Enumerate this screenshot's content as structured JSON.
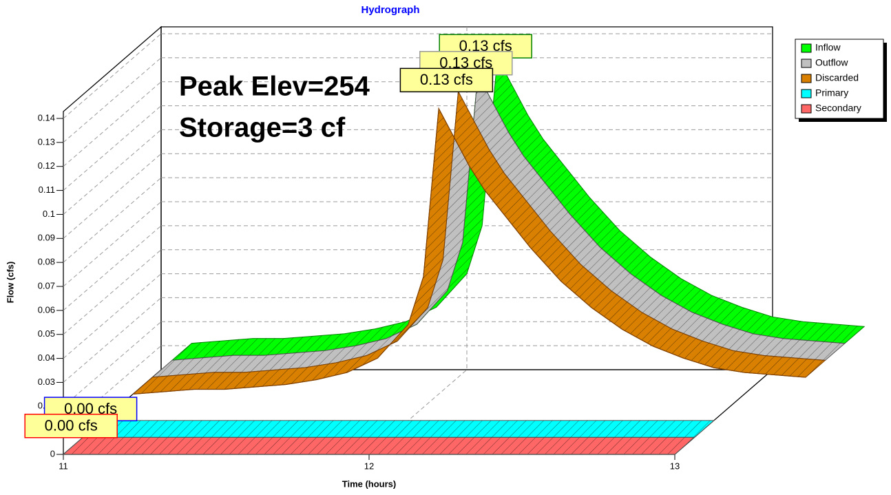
{
  "chart_data": {
    "type": "ribbon3d",
    "title": "Hydrograph",
    "x_label": "Time  (hours)",
    "y_label": "Flow  (cfs)",
    "annotations": [
      "Peak Elev=254",
      "Storage=3 cf"
    ],
    "xlim": [
      11,
      13
    ],
    "xticks": [
      11,
      12,
      13
    ],
    "ylim": [
      0,
      0.14
    ],
    "yticks": [
      0,
      0.01,
      0.02,
      0.03,
      0.04,
      0.05,
      0.06,
      0.07,
      0.08,
      0.09,
      0.1,
      0.11,
      0.12,
      0.13,
      0.14
    ],
    "grid": true,
    "legend": "top-right",
    "series": [
      {
        "name": "Inflow",
        "color": "#00ff00",
        "x": [
          11.1,
          11.2,
          11.3,
          11.4,
          11.5,
          11.6,
          11.7,
          11.8,
          11.9,
          12.0,
          12.05,
          12.1,
          12.15,
          12.2,
          12.25,
          12.3,
          12.4,
          12.5,
          12.6,
          12.7,
          12.8,
          12.9,
          13.0,
          13.1,
          13.2,
          13.3
        ],
        "values": [
          0.011,
          0.012,
          0.013,
          0.013,
          0.014,
          0.015,
          0.017,
          0.02,
          0.026,
          0.04,
          0.06,
          0.13,
          0.118,
          0.106,
          0.096,
          0.088,
          0.072,
          0.058,
          0.047,
          0.038,
          0.031,
          0.026,
          0.022,
          0.02,
          0.019,
          0.018
        ],
        "value_labels": [
          null,
          null,
          null,
          null,
          null,
          null,
          null,
          null,
          null,
          null,
          null,
          "0.13 cfs",
          null,
          null,
          null,
          null,
          null,
          null,
          null,
          null,
          null,
          null,
          null,
          null,
          null,
          null
        ]
      },
      {
        "name": "Outflow",
        "color": "#c0c0c0",
        "x": [
          11.1,
          11.2,
          11.3,
          11.4,
          11.5,
          11.6,
          11.7,
          11.8,
          11.9,
          12.0,
          12.05,
          12.1,
          12.15,
          12.2,
          12.25,
          12.3,
          12.4,
          12.5,
          12.6,
          12.7,
          12.8,
          12.9,
          13.0,
          13.1,
          13.2,
          13.3
        ],
        "values": [
          0.011,
          0.012,
          0.013,
          0.013,
          0.014,
          0.015,
          0.017,
          0.02,
          0.026,
          0.04,
          0.06,
          0.13,
          0.118,
          0.106,
          0.096,
          0.088,
          0.072,
          0.058,
          0.047,
          0.038,
          0.031,
          0.026,
          0.022,
          0.02,
          0.019,
          0.018
        ],
        "value_labels": [
          null,
          null,
          null,
          null,
          null,
          null,
          null,
          null,
          null,
          null,
          null,
          "0.13 cfs",
          null,
          null,
          null,
          null,
          null,
          null,
          null,
          null,
          null,
          null,
          null,
          null,
          null,
          null
        ]
      },
      {
        "name": "Discarded",
        "color": "#d98000",
        "x": [
          11.1,
          11.2,
          11.3,
          11.4,
          11.5,
          11.6,
          11.7,
          11.8,
          11.9,
          12.0,
          12.05,
          12.1,
          12.15,
          12.2,
          12.25,
          12.3,
          12.4,
          12.5,
          12.6,
          12.7,
          12.8,
          12.9,
          13.0,
          13.1,
          13.2,
          13.3
        ],
        "values": [
          0.011,
          0.012,
          0.013,
          0.013,
          0.014,
          0.015,
          0.017,
          0.02,
          0.026,
          0.04,
          0.06,
          0.13,
          0.118,
          0.106,
          0.096,
          0.088,
          0.072,
          0.058,
          0.047,
          0.038,
          0.031,
          0.026,
          0.022,
          0.02,
          0.019,
          0.018
        ],
        "value_labels": [
          null,
          null,
          null,
          null,
          null,
          null,
          null,
          null,
          null,
          null,
          null,
          "0.13 cfs",
          null,
          null,
          null,
          null,
          null,
          null,
          null,
          null,
          null,
          null,
          null,
          null,
          null,
          null
        ]
      },
      {
        "name": "Primary",
        "color": "#00ffff",
        "x": [
          11,
          13
        ],
        "values": [
          0,
          0
        ],
        "value_labels": [
          "0.00 cfs",
          null
        ]
      },
      {
        "name": "Secondary",
        "color": "#ff6666",
        "x": [
          11,
          13
        ],
        "values": [
          0,
          0
        ],
        "value_labels": [
          "0.00 cfs",
          null
        ]
      }
    ]
  }
}
